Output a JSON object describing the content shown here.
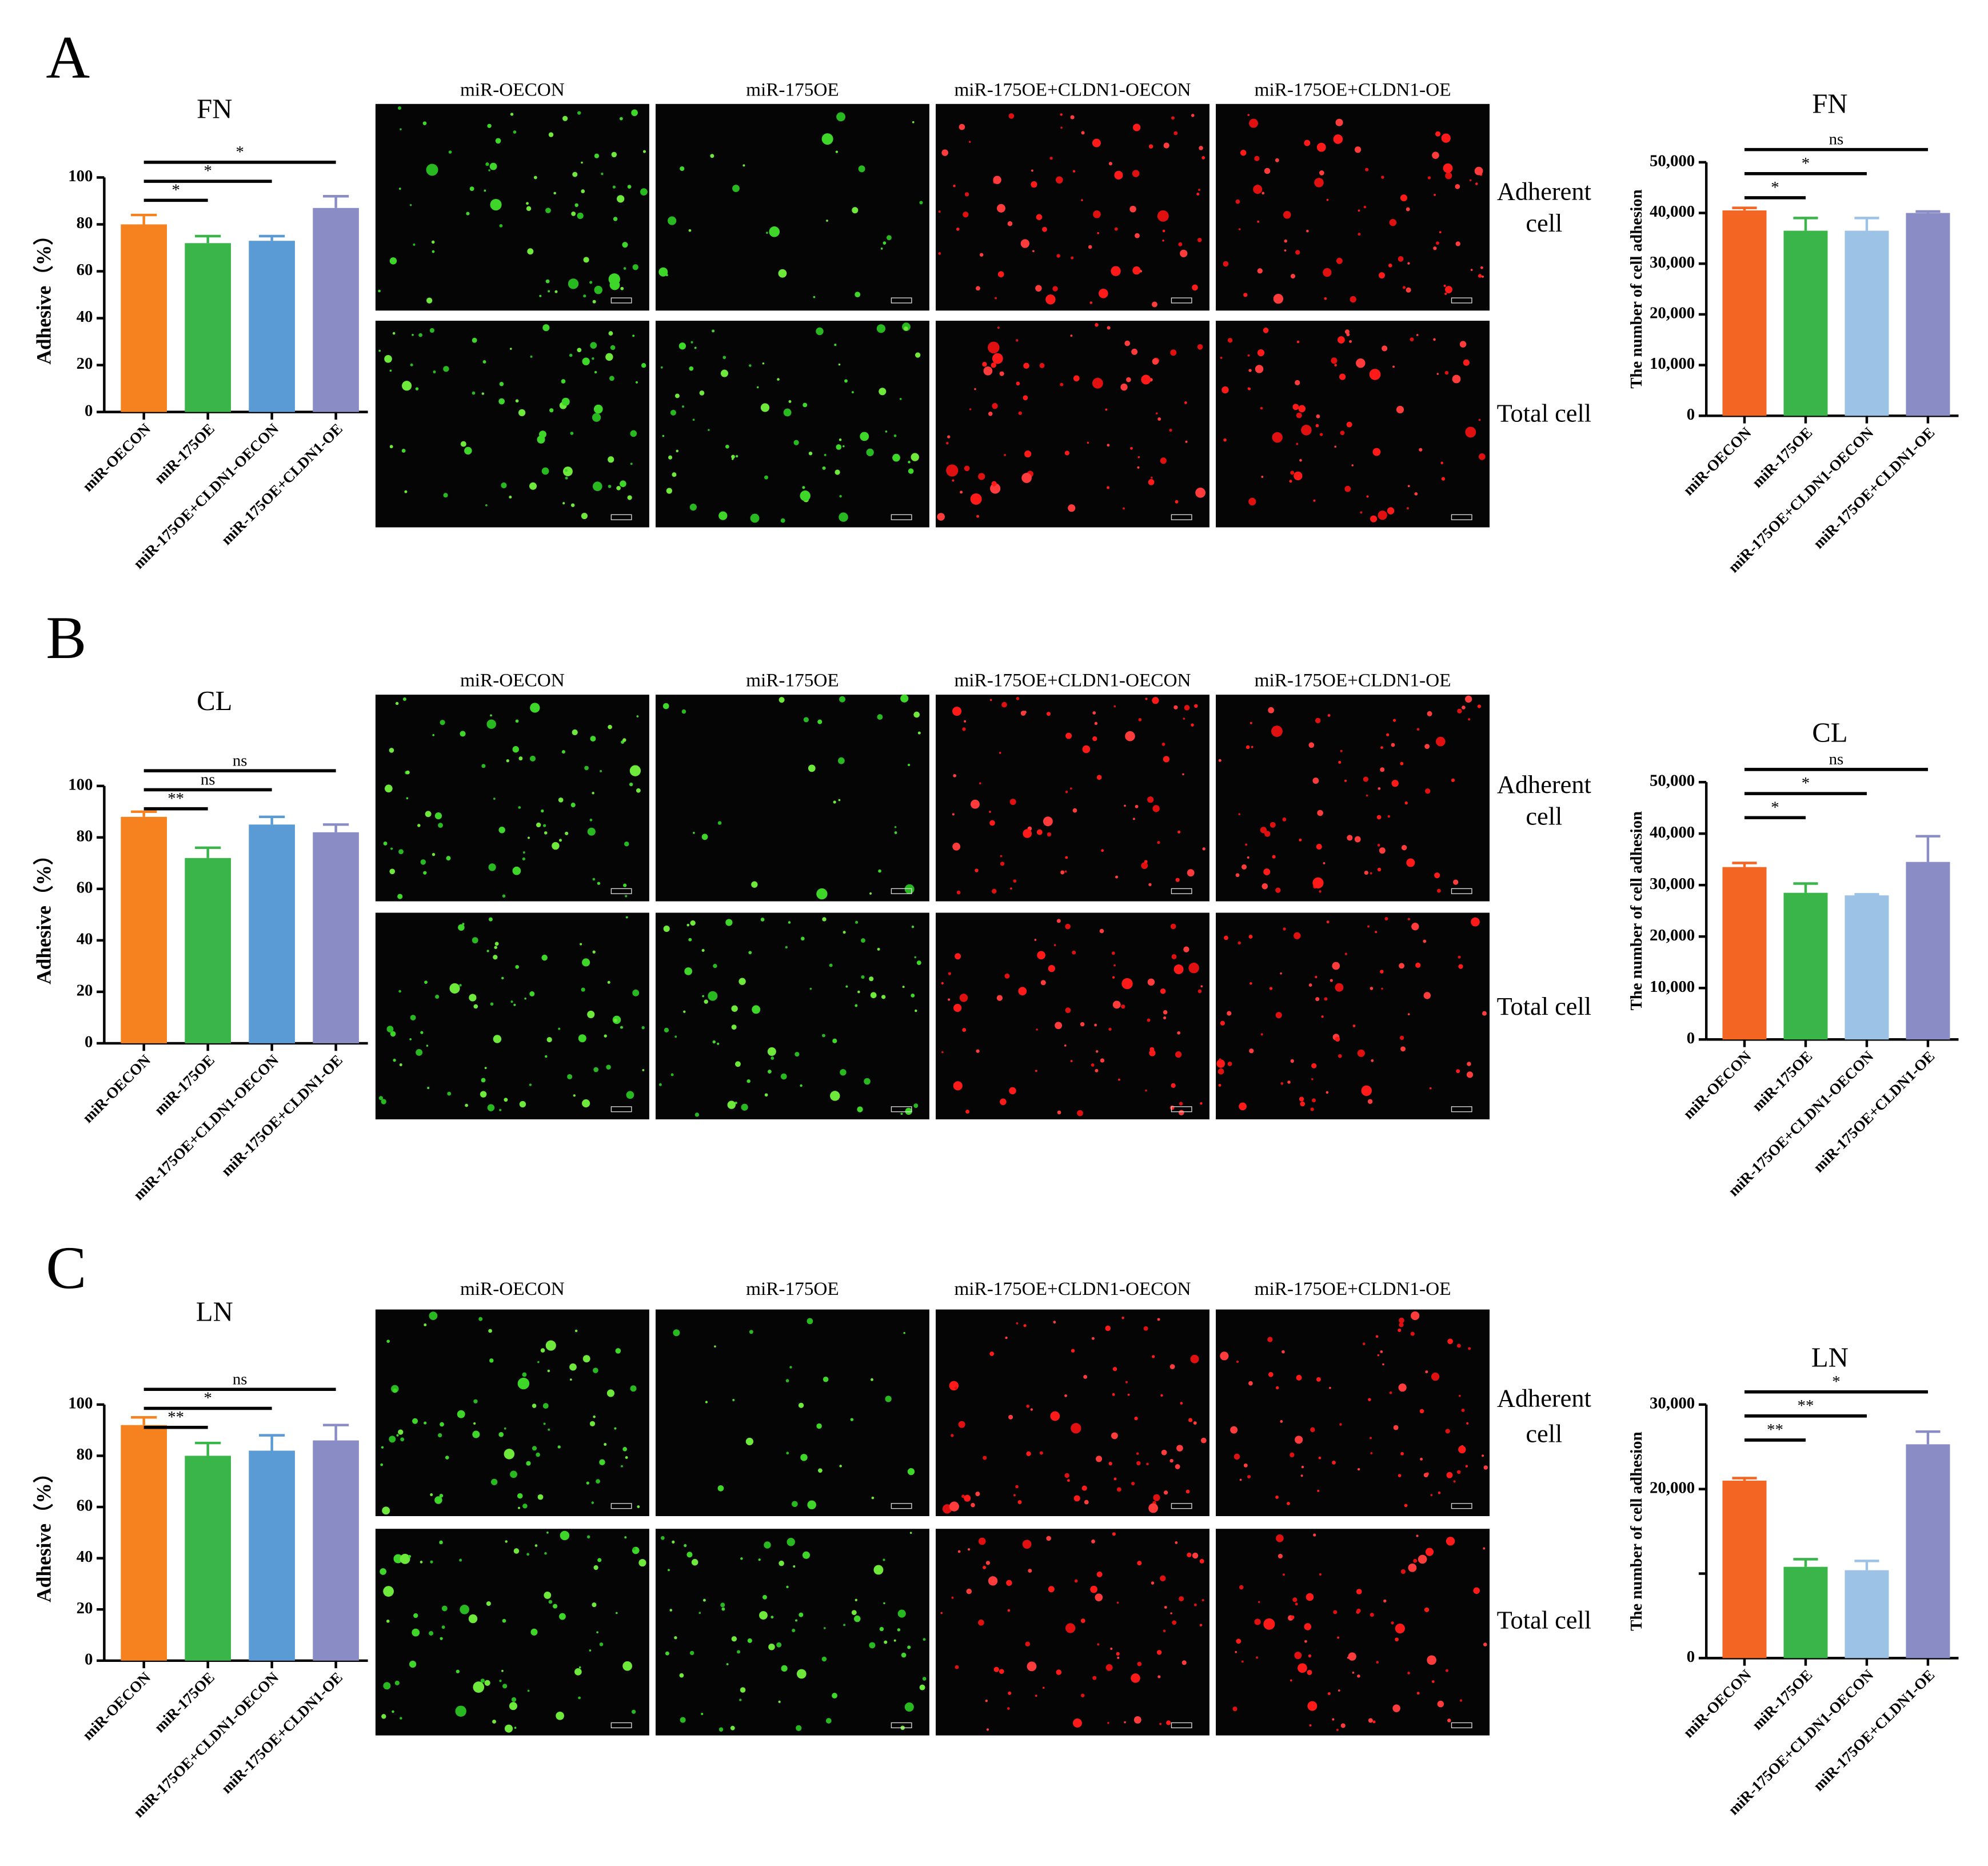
{
  "panels": [
    {
      "letter": "A",
      "columns": [
        "miR-OECON",
        "miR-175OE",
        "miR-175OE+CLDN1-OECON",
        "miR-175OE+CLDN1-OE"
      ],
      "rows": [
        [
          "Adherent",
          "cell"
        ],
        [
          "Total cell"
        ]
      ]
    },
    {
      "letter": "B",
      "columns": [
        "miR-OECON",
        "miR-175OE",
        "miR-175OE+CLDN1-OECON",
        "miR-175OE+CLDN1-OE"
      ],
      "rows": [
        [
          "Adherent",
          "cell"
        ],
        [
          "Total cell"
        ]
      ]
    },
    {
      "letter": "C",
      "columns": [
        "miR-OECON",
        "miR-175OE",
        "miR-175OE+CLDN1-OECON",
        "miR-175OE+CLDN1-OE"
      ],
      "rows": [
        [
          "Adherent",
          "cell"
        ],
        [
          "Total cell"
        ]
      ]
    }
  ],
  "chart_data": [
    {
      "type": "bar",
      "title": "FN",
      "y_label": "Adhesive（%）",
      "categories": [
        "miR-OECON",
        "miR-175OE",
        "miR-175OE+CLDN1-OECON",
        "miR-175OE+CLDN1-OE"
      ],
      "values": [
        80,
        72,
        73,
        87
      ],
      "errors": [
        4,
        3,
        2,
        5
      ],
      "colors": [
        "#f5821f",
        "#3ab54a",
        "#5b9bd5",
        "#8a8cc6"
      ],
      "ylim": [
        0,
        100
      ],
      "yticks": [
        0,
        20,
        40,
        60,
        80,
        100
      ],
      "annotations": [
        {
          "text": "*",
          "from": "miR-OECON",
          "to": "miR-175OE"
        },
        {
          "text": "*",
          "from": "miR-OECON",
          "to": "miR-175OE+CLDN1-OECON"
        },
        {
          "text": "*",
          "from": "miR-OECON",
          "to": "miR-175OE+CLDN1-OE"
        }
      ]
    },
    {
      "type": "bar",
      "title": "FN",
      "y_label": "The number of cell adhesion",
      "categories": [
        "miR-OECON",
        "miR-175OE",
        "miR-175OE+CLDN1-OECON",
        "miR-175OE+CLDN1-OE"
      ],
      "values": [
        40500,
        36500,
        36500,
        40000
      ],
      "errors": [
        500,
        2500,
        2500,
        300
      ],
      "colors": [
        "#f26522",
        "#3ab54a",
        "#9cc3e6",
        "#8a8cc6"
      ],
      "ylim": [
        0,
        50000
      ],
      "yticks": [
        0,
        {
          "value": 10000,
          "label": "10,000"
        },
        {
          "value": 20000,
          "label": "20,000"
        },
        {
          "value": 30000,
          "label": "30,000"
        },
        {
          "value": 40000,
          "label": "40,000"
        },
        {
          "value": 50000,
          "label": "50,000"
        }
      ],
      "annotations": [
        {
          "text": "*",
          "from": "miR-OECON",
          "to": "miR-175OE"
        },
        {
          "text": "*",
          "from": "miR-OECON",
          "to": "miR-175OE+CLDN1-OECON"
        },
        {
          "text": "ns",
          "from": "miR-OECON",
          "to": "miR-175OE+CLDN1-OE"
        }
      ]
    },
    {
      "type": "bar",
      "title": "CL",
      "y_label": "Adhesive（%）",
      "categories": [
        "miR-OECON",
        "miR-175OE",
        "miR-175OE+CLDN1-OECON",
        "miR-175OE+CLDN1-OE"
      ],
      "values": [
        88,
        72,
        85,
        82
      ],
      "errors": [
        2,
        4,
        3,
        3
      ],
      "colors": [
        "#f5821f",
        "#3ab54a",
        "#5b9bd5",
        "#8a8cc6"
      ],
      "ylim": [
        0,
        100
      ],
      "yticks": [
        0,
        20,
        40,
        60,
        80,
        100
      ],
      "annotations": [
        {
          "text": "**",
          "from": "miR-OECON",
          "to": "miR-175OE"
        },
        {
          "text": "ns",
          "from": "miR-OECON",
          "to": "miR-175OE+CLDN1-OECON"
        },
        {
          "text": "ns",
          "from": "miR-OECON",
          "to": "miR-175OE+CLDN1-OE"
        }
      ]
    },
    {
      "type": "bar",
      "title": "CL",
      "y_label": "The number of cell adhesion",
      "categories": [
        "miR-OECON",
        "miR-175OE",
        "miR-175OE+CLDN1-OECON",
        "miR-175OE+CLDN1-OE"
      ],
      "values": [
        33500,
        28500,
        28000,
        34500
      ],
      "errors": [
        800,
        1800,
        200,
        5000
      ],
      "colors": [
        "#f26522",
        "#3ab54a",
        "#9cc3e6",
        "#8a8cc6"
      ],
      "ylim": [
        0,
        50000
      ],
      "yticks": [
        0,
        {
          "value": 10000,
          "label": "10,000"
        },
        {
          "value": 20000,
          "label": "20,000"
        },
        {
          "value": 30000,
          "label": "30,000"
        },
        {
          "value": 40000,
          "label": "40,000"
        },
        {
          "value": 50000,
          "label": "50,000"
        }
      ],
      "annotations": [
        {
          "text": "*",
          "from": "miR-OECON",
          "to": "miR-175OE"
        },
        {
          "text": "*",
          "from": "miR-OECON",
          "to": "miR-175OE+CLDN1-OECON"
        },
        {
          "text": "ns",
          "from": "miR-OECON",
          "to": "miR-175OE+CLDN1-OE"
        }
      ]
    },
    {
      "type": "bar",
      "title": "LN",
      "y_label": "Adhesive（%）",
      "categories": [
        "miR-OECON",
        "miR-175OE",
        "miR-175OE+CLDN1-OECON",
        "miR-175OE+CLDN1-OE"
      ],
      "values": [
        92,
        80,
        82,
        86
      ],
      "errors": [
        3,
        5,
        6,
        6
      ],
      "colors": [
        "#f5821f",
        "#3ab54a",
        "#5b9bd5",
        "#8a8cc6"
      ],
      "ylim": [
        0,
        100
      ],
      "yticks": [
        0,
        20,
        40,
        60,
        80,
        100
      ],
      "annotations": [
        {
          "text": "**",
          "from": "miR-OECON",
          "to": "miR-175OE"
        },
        {
          "text": "*",
          "from": "miR-OECON",
          "to": "miR-175OE+CLDN1-OECON"
        },
        {
          "text": "ns",
          "from": "miR-OECON",
          "to": "miR-175OE+CLDN1-OE"
        }
      ]
    },
    {
      "type": "bar",
      "title": "LN",
      "y_label": "The number of cell adhesion",
      "categories": [
        "miR-OECON",
        "miR-175OE",
        "miR-175OE+CLDN1-OECON",
        "miR-175OE+CLDN1-OE"
      ],
      "values": [
        21000,
        10800,
        10400,
        25300
      ],
      "errors": [
        300,
        900,
        1100,
        1500
      ],
      "colors": [
        "#f26522",
        "#3ab54a",
        "#9cc3e6",
        "#8a8cc6"
      ],
      "ylim": [
        0,
        30000
      ],
      "yticks": [
        0,
        {
          "value": 10000,
          "label": null
        },
        {
          "value": 20000,
          "label": "20,000"
        },
        {
          "value": 30000,
          "label": "30,000"
        }
      ],
      "annotations": [
        {
          "text": "**",
          "from": "miR-OECON",
          "to": "miR-175OE"
        },
        {
          "text": "**",
          "from": "miR-OECON",
          "to": "miR-175OE+CLDN1-OECON"
        },
        {
          "text": "*",
          "from": "miR-OECON",
          "to": "miR-175OE+CLDN1-OE"
        }
      ]
    }
  ]
}
